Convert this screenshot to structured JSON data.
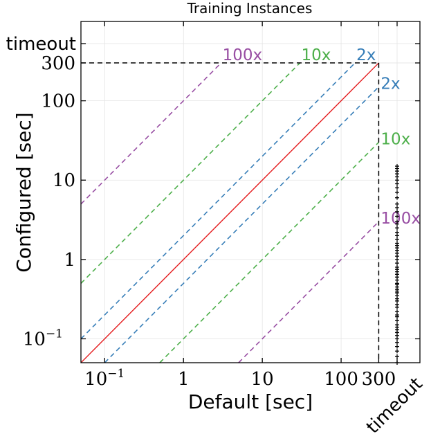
{
  "chart_data": {
    "type": "scatter",
    "title": "Training Instances",
    "xlabel": "Default [sec]",
    "ylabel": "Configured [sec]",
    "xscale": "log",
    "yscale": "log",
    "xlim": [
      0.05,
      1000
    ],
    "ylim": [
      0.05,
      1000
    ],
    "grid": true,
    "timeout_value": 300,
    "timeout_label": "timeout",
    "x_ticks": [
      {
        "value": 0.1,
        "base": "10",
        "exp": "−1"
      },
      {
        "value": 1,
        "label": "1"
      },
      {
        "value": 10,
        "label": "10"
      },
      {
        "value": 100,
        "label": "100"
      },
      {
        "value": 300,
        "label": "300"
      }
    ],
    "y_ticks": [
      {
        "value": 0.1,
        "base": "10",
        "exp": "−1"
      },
      {
        "value": 1,
        "label": "1"
      },
      {
        "value": 10,
        "label": "10"
      },
      {
        "value": 100,
        "label": "100"
      },
      {
        "value": 300,
        "label": "300"
      }
    ],
    "reference_lines": [
      {
        "factor": 100,
        "label": "100x",
        "color": "#984ea3",
        "label_side": "top"
      },
      {
        "factor": 10,
        "label": "10x",
        "color": "#4daf4a",
        "label_side": "top"
      },
      {
        "factor": 2,
        "label": "2x",
        "color": "#377eb8",
        "label_side": "top"
      },
      {
        "factor": 0.5,
        "label": "2x",
        "color": "#377eb8",
        "label_side": "right"
      },
      {
        "factor": 0.1,
        "label": "10x",
        "color": "#4daf4a",
        "label_side": "right"
      },
      {
        "factor": 0.01,
        "label": "100x",
        "color": "#984ea3",
        "label_side": "right"
      }
    ],
    "diagonal_color": "#e41a1c",
    "timeout_line_color": "#000000",
    "series": [
      {
        "marker": "plus",
        "color": "#000000",
        "x_value": "timeout",
        "y": [
          0.05,
          0.06,
          0.07,
          0.08,
          0.09,
          0.1,
          0.11,
          0.12,
          0.13,
          0.14,
          0.15,
          0.17,
          0.19,
          0.2,
          0.22,
          0.25,
          0.27,
          0.3,
          0.32,
          0.35,
          0.38,
          0.4,
          0.42,
          0.45,
          0.48,
          0.5,
          0.55,
          0.6,
          0.65,
          0.7,
          0.75,
          0.8,
          0.9,
          1.0,
          1.1,
          1.2,
          1.3,
          1.4,
          1.5,
          1.6,
          1.8,
          2.0,
          2.2,
          2.5,
          2.8,
          3.0,
          3.5,
          4.0,
          4.5,
          5.0,
          6.0,
          7.0,
          8.0,
          9.0,
          10.0,
          11.0,
          12.0,
          13.0,
          14.0,
          15.0
        ]
      }
    ]
  }
}
